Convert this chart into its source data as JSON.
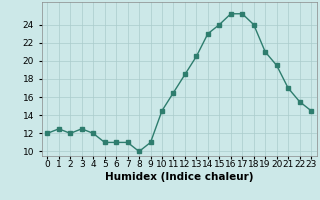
{
  "x": [
    0,
    1,
    2,
    3,
    4,
    5,
    6,
    7,
    8,
    9,
    10,
    11,
    12,
    13,
    14,
    15,
    16,
    17,
    18,
    19,
    20,
    21,
    22,
    23
  ],
  "y": [
    12,
    12.5,
    12,
    12.5,
    12,
    11,
    11,
    11,
    10,
    11,
    14.5,
    16.5,
    18.5,
    20.5,
    23,
    24,
    25.2,
    25.2,
    24,
    21,
    19.5,
    17,
    15.5,
    14.5
  ],
  "xlabel": "Humidex (Indice chaleur)",
  "xlim": [
    -0.5,
    23.5
  ],
  "ylim": [
    9.5,
    26.5
  ],
  "yticks": [
    10,
    12,
    14,
    16,
    18,
    20,
    22,
    24
  ],
  "xtick_labels": [
    "0",
    "1",
    "2",
    "3",
    "4",
    "5",
    "6",
    "7",
    "8",
    "9",
    "10",
    "11",
    "12",
    "13",
    "14",
    "15",
    "16",
    "17",
    "18",
    "19",
    "20",
    "21",
    "22",
    "23"
  ],
  "line_color": "#2e7d6e",
  "marker": "s",
  "markersize": 2.5,
  "linewidth": 1.0,
  "bg_color": "#cce8e8",
  "grid_color": "#aacccc",
  "xlabel_fontsize": 7.5,
  "tick_fontsize": 6.5
}
